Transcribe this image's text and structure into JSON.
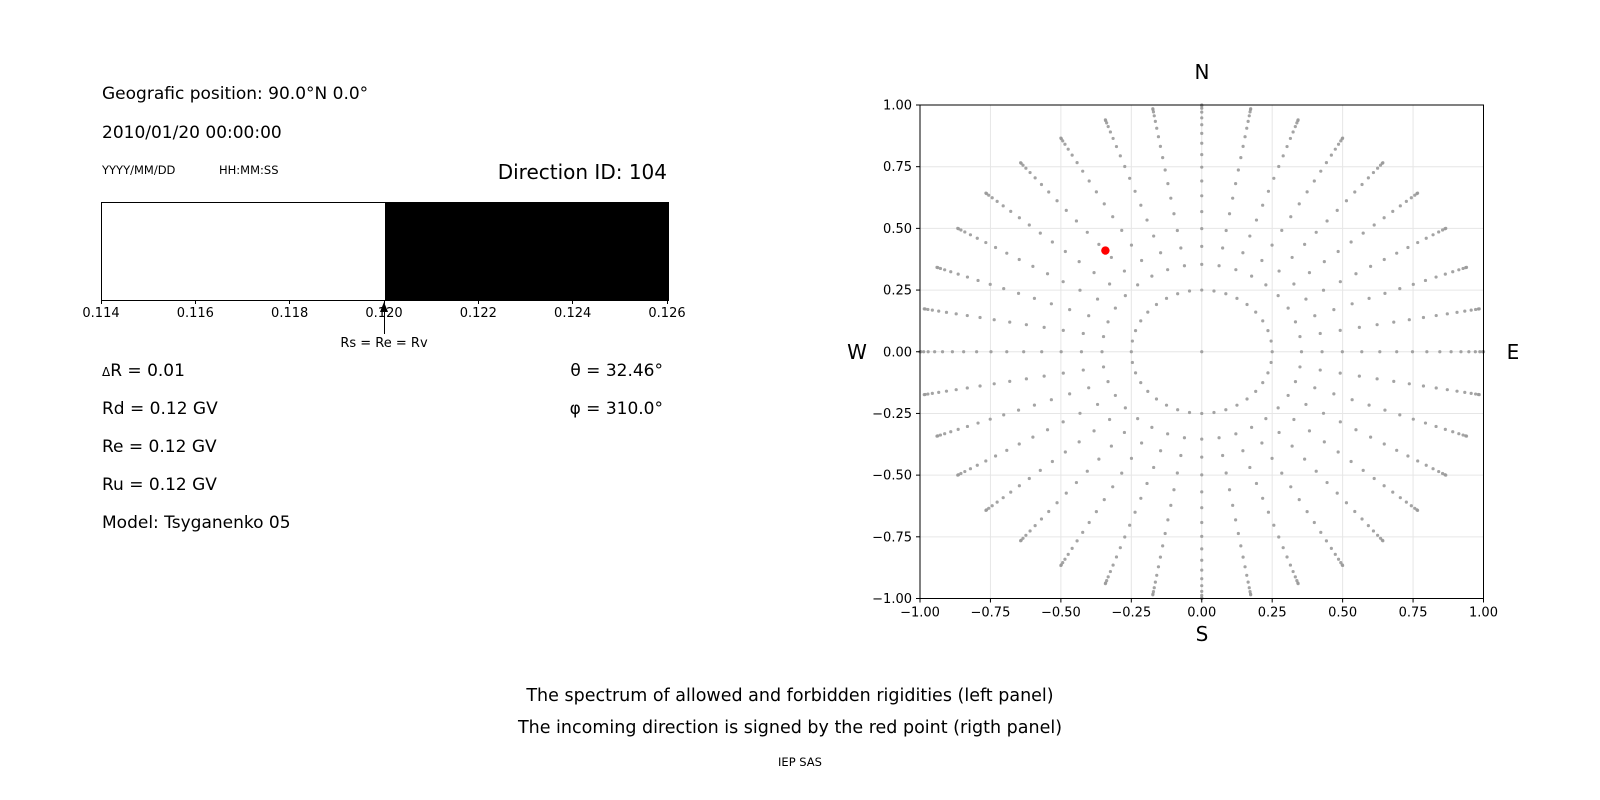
{
  "info": {
    "geographic_position": "Geografic position: 90.0°N 0.0°",
    "datetime": "2010/01/20 00:00:00",
    "date_format_hint": "YYYY/MM/DD",
    "time_format_hint": "HH:MM:SS",
    "direction_id": "Direction ID: 104",
    "delta_r_symbol": "Δ",
    "delta_r_value": "R = 0.01",
    "rd": "Rd = 0.12 GV",
    "re": "Re = 0.12 GV",
    "ru": "Ru = 0.12 GV",
    "model": "Model: Tsyganenko 05",
    "theta": "θ = 32.46°",
    "phi": "φ = 310.0°"
  },
  "direction_panel": {
    "compass": {
      "north": "N",
      "south": "S",
      "west": "W",
      "east": "E"
    }
  },
  "caption": {
    "line1": "The spectrum of allowed and forbidden rigidities (left panel)",
    "line2": "The incoming direction is signed by the red point (rigth panel)",
    "credit": "IEP SAS"
  },
  "chart_data": [
    {
      "id": "rigidity-spectrum",
      "type": "bar",
      "title": "",
      "xlim": [
        0.114,
        0.126
      ],
      "tick_values": [
        0.114,
        0.116,
        0.118,
        0.12,
        0.122,
        0.124,
        0.126
      ],
      "tick_labels": [
        "0.114",
        "0.116",
        "0.118",
        "0.120",
        "0.122",
        "0.124",
        "0.126"
      ],
      "regions": [
        {
          "name": "allowed",
          "from": 0.114,
          "to": 0.12,
          "color": "#ffffff"
        },
        {
          "name": "forbidden",
          "from": 0.12,
          "to": 0.126,
          "color": "#000000"
        }
      ],
      "marker": {
        "x": 0.12,
        "label": "Rs = Re = Rv"
      }
    },
    {
      "id": "incoming-direction-map",
      "type": "scatter",
      "xlim": [
        -1,
        1
      ],
      "ylim": [
        -1,
        1
      ],
      "grid": true,
      "tick_values": [
        -1,
        -0.75,
        -0.5,
        -0.25,
        0,
        0.25,
        0.5,
        0.75,
        1
      ],
      "tick_labels": [
        "−1.00",
        "−0.75",
        "−0.50",
        "−0.25",
        "0.00",
        "0.25",
        "0.50",
        "0.75",
        "1.00"
      ],
      "grid_color": "#e6e6e6",
      "dot_color": "#9a9a9a",
      "dot_pattern": {
        "center_dot": true,
        "ring_radius": 0.25,
        "azimuth_start_deg": 0,
        "azimuth_step_deg": 10,
        "azimuth_count": 36,
        "ray_radii": [
          0.354,
          0.427,
          0.499,
          0.568,
          0.632,
          0.692,
          0.748,
          0.799,
          0.845,
          0.885,
          0.92,
          0.948,
          0.971,
          0.987,
          0.997,
          1.0
        ]
      },
      "red_point": {
        "x": -0.342,
        "y": 0.41,
        "color": "#ff0000"
      }
    }
  ]
}
